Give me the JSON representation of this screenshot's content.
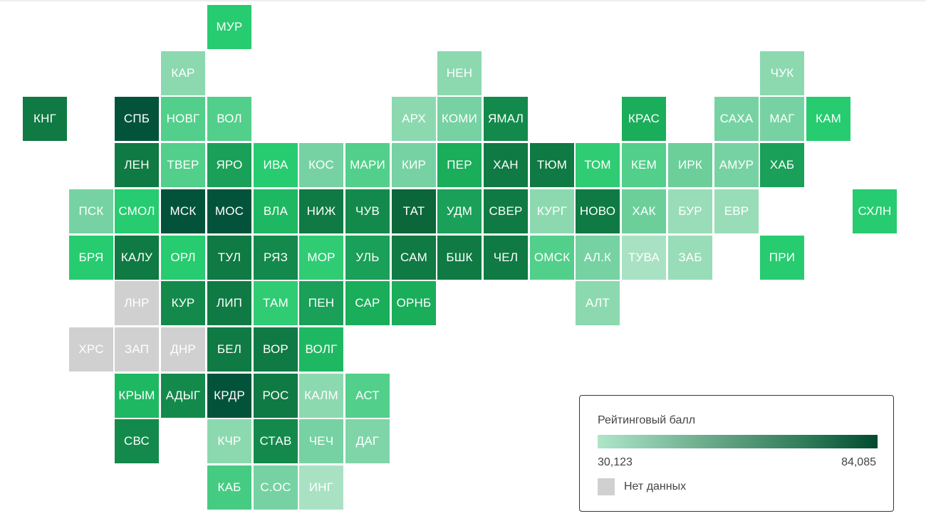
{
  "map": {
    "grid": [
      [
        "",
        "",
        "",
        "",
        "МУР",
        "",
        "",
        "",
        "",
        "",
        "",
        "",
        "",
        "",
        "",
        "",
        "",
        "",
        ""
      ],
      [
        "",
        "",
        "",
        "КАР",
        "",
        "",
        "",
        "",
        "",
        "НЕН",
        "",
        "",
        "",
        "",
        "",
        "",
        "ЧУК",
        "",
        ""
      ],
      [
        "КНГ",
        "",
        "СПБ",
        "НОВГ",
        "ВОЛ",
        "",
        "",
        "",
        "АРХ",
        "КОМИ",
        "ЯМАЛ",
        "",
        "",
        "КРАС",
        "",
        "САХА",
        "МАГ",
        "КАМ",
        ""
      ],
      [
        "",
        "",
        "ЛЕН",
        "ТВЕР",
        "ЯРО",
        "ИВА",
        "КОС",
        "МАРИ",
        "КИР",
        "ПЕР",
        "ХАН",
        "ТЮМ",
        "ТОМ",
        "КЕМ",
        "ИРК",
        "АМУР",
        "ХАБ",
        "",
        ""
      ],
      [
        "",
        "ПСК",
        "СМОЛ",
        "МСК",
        "МОС",
        "ВЛА",
        "НИЖ",
        "ЧУВ",
        "ТАТ",
        "УДМ",
        "СВЕР",
        "КУРГ",
        "НОВО",
        "ХАК",
        "БУР",
        "ЕВР",
        "",
        "",
        "СХЛН"
      ],
      [
        "",
        "БРЯ",
        "КАЛУ",
        "ОРЛ",
        "ТУЛ",
        "РЯЗ",
        "МОР",
        "УЛЬ",
        "САМ",
        "БШК",
        "ЧЕЛ",
        "ОМСК",
        "АЛ.К",
        "ТУВА",
        "ЗАБ",
        "",
        "ПРИ",
        "",
        ""
      ],
      [
        "",
        "",
        "ЛНР",
        "КУР",
        "ЛИП",
        "ТАМ",
        "ПЕН",
        "САР",
        "ОРНБ",
        "",
        "",
        "",
        "АЛТ",
        "",
        "",
        "",
        "",
        "",
        ""
      ],
      [
        "",
        "ХРС",
        "ЗАП",
        "ДНР",
        "БЕЛ",
        "ВОР",
        "ВОЛГ",
        "",
        "",
        "",
        "",
        "",
        "",
        "",
        "",
        "",
        "",
        "",
        ""
      ],
      [
        "",
        "",
        "КРЫМ",
        "АДЫГ",
        "КРДР",
        "РОС",
        "КАЛМ",
        "АСТ",
        "",
        "",
        "",
        "",
        "",
        "",
        "",
        "",
        "",
        "",
        ""
      ],
      [
        "",
        "",
        "СВС",
        "",
        "КЧР",
        "СТАВ",
        "ЧЕЧ",
        "ДАГ",
        "",
        "",
        "",
        "",
        "",
        "",
        "",
        "",
        "",
        "",
        ""
      ],
      [
        "",
        "",
        "",
        "",
        "КАБ",
        "С.ОС",
        "ИНГ",
        "",
        "",
        "",
        "",
        "",
        "",
        "",
        "",
        "",
        "",
        "",
        ""
      ]
    ],
    "colors": {
      "МУР": "#26cc6f",
      "КАР": "#8cd9b0",
      "НЕН": "#8cd9b0",
      "ЧУК": "#8cd9b0",
      "КНГ": "#0f7a43",
      "СПБ": "#03533a",
      "НОВГ": "#52cf8a",
      "ВОЛ": "#52cf8a",
      "АРХ": "#8cd9b0",
      "КОМИ": "#76d2a2",
      "ЯМАЛ": "#138a4b",
      "КРАС": "#1aad5a",
      "САХА": "#76d2a2",
      "МАГ": "#76d2a2",
      "КАМ": "#26cc6f",
      "ЛЕН": "#0f7a43",
      "ТВЕР": "#52cf8a",
      "ЯРО": "#1aa058",
      "ИВА": "#26cc6f",
      "КОС": "#76d2a2",
      "МАРИ": "#52cf8a",
      "КИР": "#76d2a2",
      "ПЕР": "#1aad5a",
      "ХАН": "#0f7a43",
      "ТЮМ": "#0f7a43",
      "ТОМ": "#2fcc74",
      "КЕМ": "#52cf8a",
      "ИРК": "#6ccf9a",
      "АМУР": "#76d2a2",
      "ХАБ": "#1aa058",
      "ПСК": "#76d2a2",
      "СМОЛ": "#26cc6f",
      "МСК": "#03533a",
      "МОС": "#03533a",
      "ВЛА": "#1fb862",
      "НИЖ": "#0f7a43",
      "ЧУВ": "#138a4b",
      "ТАТ": "#0b663a",
      "УДМ": "#1aa058",
      "СВЕР": "#0f7a43",
      "КУРГ": "#8cd9b0",
      "НОВО": "#0f7a43",
      "ХАК": "#6ccf9a",
      "БУР": "#99ddb8",
      "ЕВР": "#99ddb8",
      "СХЛН": "#26cc6f",
      "БРЯ": "#26cc6f",
      "КАЛУ": "#0f7a43",
      "ОРЛ": "#26cc6f",
      "ТУЛ": "#0f7a43",
      "РЯЗ": "#138a4b",
      "МОР": "#2fcc74",
      "УЛЬ": "#1aa058",
      "САМ": "#0f7a43",
      "БШК": "#0f7a43",
      "ЧЕЛ": "#0f7a43",
      "ОМСК": "#52cf8a",
      "АЛ.К": "#76d2a2",
      "ТУВА": "#a8e2c3",
      "ЗАБ": "#99ddb8",
      "ПРИ": "#26cc6f",
      "ЛНР": "#d0d0d0",
      "КУР": "#138a4b",
      "ЛИП": "#0f7a43",
      "ТАМ": "#2fcc74",
      "ПЕН": "#1aa058",
      "САР": "#1aad5a",
      "ОРНБ": "#1aad5a",
      "АЛТ": "#8cd9b0",
      "ХРС": "#d0d0d0",
      "ЗАП": "#d0d0d0",
      "ДНР": "#d0d0d0",
      "БЕЛ": "#0f7a43",
      "ВОР": "#0f7a43",
      "ВОЛГ": "#1fb862",
      "КРЫМ": "#1fb862",
      "АДЫГ": "#138a4b",
      "КРДР": "#03533a",
      "РОС": "#0f7a43",
      "КАЛМ": "#8cd9b0",
      "АСТ": "#52cf8a",
      "СВС": "#138a4b",
      "КЧР": "#8cd9b0",
      "СТАВ": "#138a4b",
      "ЧЕЧ": "#76d2a2",
      "ДАГ": "#7fd5a8",
      "КАБ": "#45cc82",
      "С.ОС": "#76d2a2",
      "ИНГ": "#a8e2c3"
    }
  },
  "legend": {
    "title": "Рейтинговый балл",
    "min_label": "30,123",
    "max_label": "84,085",
    "min_value": 30.123,
    "max_value": 84.085,
    "gradient_colors": [
      "#aee6c9",
      "#024a30"
    ],
    "no_data_label": "Нет данных",
    "no_data_color": "#d0d0d0"
  }
}
